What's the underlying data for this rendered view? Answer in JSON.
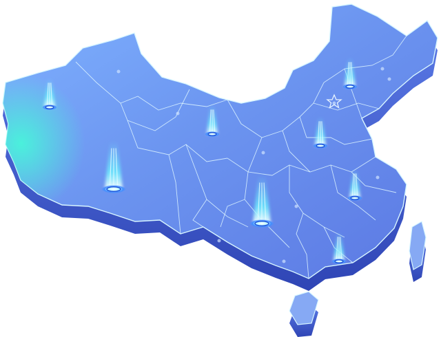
{
  "map": {
    "palette": {
      "top_light": "#9cc4ff",
      "top_dark": "#4f6fe0",
      "side": "#3b55c8",
      "glow_cyan": "#49f3ff",
      "glow_blue": "#6aa8ff",
      "edge": "#d8f6ff",
      "highlight": "#43ffd7"
    },
    "markers": [
      {
        "id": "marker-xinjiang",
        "kind": "beacon",
        "size": "small"
      },
      {
        "id": "marker-tibet",
        "kind": "beacon",
        "size": "large"
      },
      {
        "id": "marker-gansu",
        "kind": "beacon",
        "size": "small"
      },
      {
        "id": "marker-sichuan",
        "kind": "beacon",
        "size": "large"
      },
      {
        "id": "marker-hebei",
        "kind": "beacon",
        "size": "small"
      },
      {
        "id": "marker-jiangsu",
        "kind": "beacon",
        "size": "small"
      },
      {
        "id": "marker-guangdong",
        "kind": "beacon",
        "size": "small"
      },
      {
        "id": "marker-heilongjiang",
        "kind": "beacon",
        "size": "small"
      }
    ],
    "capital_marker": {
      "icon": "star-icon"
    }
  }
}
